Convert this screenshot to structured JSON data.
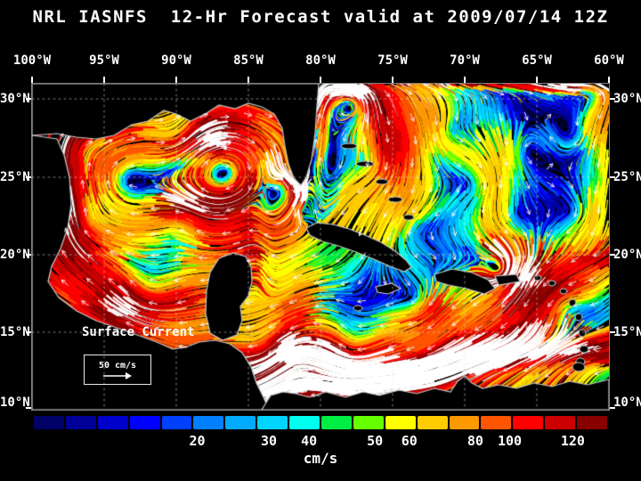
{
  "title": "NRL IASNFS  12-Hr Forecast valid at 2009/07/14 12Z",
  "axes": {
    "longitude_labels": [
      "100°W",
      "95°W",
      "90°W",
      "85°W",
      "80°W",
      "75°W",
      "70°W",
      "65°W",
      "60°W"
    ],
    "latitude_labels_left": [
      "30°N",
      "25°N",
      "20°N",
      "15°N",
      "10°N"
    ],
    "latitude_labels_right": [
      "30°N",
      "25°N",
      "20°N",
      "15°N",
      "10°N"
    ]
  },
  "map": {
    "annotation": "Surface Current",
    "scale_value": "50 cm/s"
  },
  "colorbar": {
    "unit": "cm/s",
    "segment_colors": [
      "#000066",
      "#000099",
      "#0000cc",
      "#0000ff",
      "#0040ff",
      "#0080ff",
      "#00aaff",
      "#00d4ff",
      "#00ffee",
      "#00ee44",
      "#66ff00",
      "#ffff00",
      "#ffcc00",
      "#ff9900",
      "#ff5500",
      "#ff0000",
      "#cc0000",
      "#880000"
    ],
    "scale_edges": [
      5,
      10,
      15,
      20,
      25,
      30,
      35,
      40,
      45,
      50,
      55,
      60,
      70,
      80,
      90,
      100,
      110,
      120,
      130
    ],
    "tick_labels": [
      {
        "label": "20",
        "percent": 28.5
      },
      {
        "label": "30",
        "percent": 41
      },
      {
        "label": "40",
        "percent": 48
      },
      {
        "label": "50",
        "percent": 59.5
      },
      {
        "label": "60",
        "percent": 65.5
      },
      {
        "label": "80",
        "percent": 77
      },
      {
        "label": "100",
        "percent": 83
      },
      {
        "label": "120",
        "percent": 94
      }
    ]
  },
  "colors": {
    "background": "#000000",
    "text": "#ffffff",
    "land": "#000000",
    "coastline": "#c8c8c8",
    "grid_lines": "#e6e6e6",
    "current_arrows": "#ffffff",
    "frame": "#808080",
    "offscale_core": "#ffffff",
    "slow_water": "#000033"
  }
}
